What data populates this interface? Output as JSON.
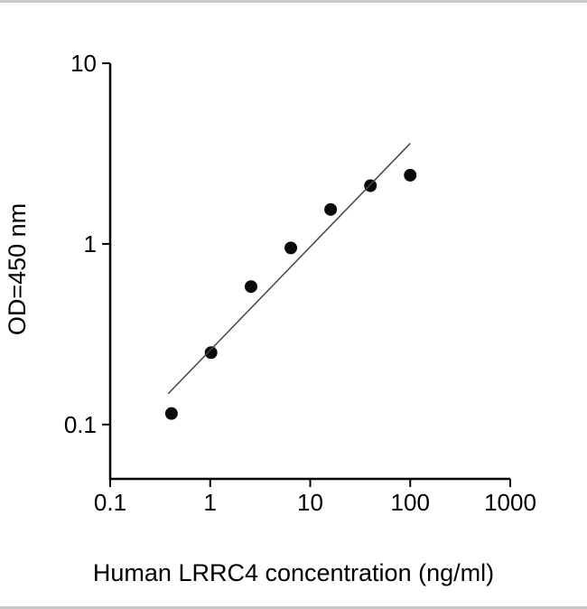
{
  "page": {
    "background": "#ffffff",
    "border_color": "#c8c8c8"
  },
  "chart_data": {
    "type": "scatter",
    "title": "",
    "xlabel": "Human LRRC4 concentration (ng/ml)",
    "ylabel": "OD=450 nm",
    "x_scale": "log",
    "y_scale": "log",
    "xlim": [
      0.1,
      1000
    ],
    "ylim": [
      0.05,
      10
    ],
    "x_ticks": [
      0.1,
      1,
      10,
      100,
      1000
    ],
    "x_tick_labels": [
      "0.1",
      "1",
      "10",
      "100",
      "1000"
    ],
    "y_ticks": [
      0.1,
      1,
      10
    ],
    "y_tick_labels": [
      "0.1",
      "1",
      "10"
    ],
    "grid": false,
    "legend": null,
    "axis_color": "#000000",
    "series": [
      {
        "name": "standard-curve-points",
        "type": "scatter",
        "marker": "filled-circle",
        "color": "#0a0a0a",
        "points": [
          {
            "x": 0.41,
            "y": 0.115
          },
          {
            "x": 1.02,
            "y": 0.25
          },
          {
            "x": 2.56,
            "y": 0.58
          },
          {
            "x": 6.4,
            "y": 0.95
          },
          {
            "x": 16,
            "y": 1.55
          },
          {
            "x": 40,
            "y": 2.1
          },
          {
            "x": 100,
            "y": 2.4
          }
        ]
      },
      {
        "name": "fit-line",
        "type": "line",
        "color": "#444444",
        "points": [
          {
            "x": 0.38,
            "y": 0.148
          },
          {
            "x": 100,
            "y": 3.6
          }
        ]
      }
    ]
  }
}
